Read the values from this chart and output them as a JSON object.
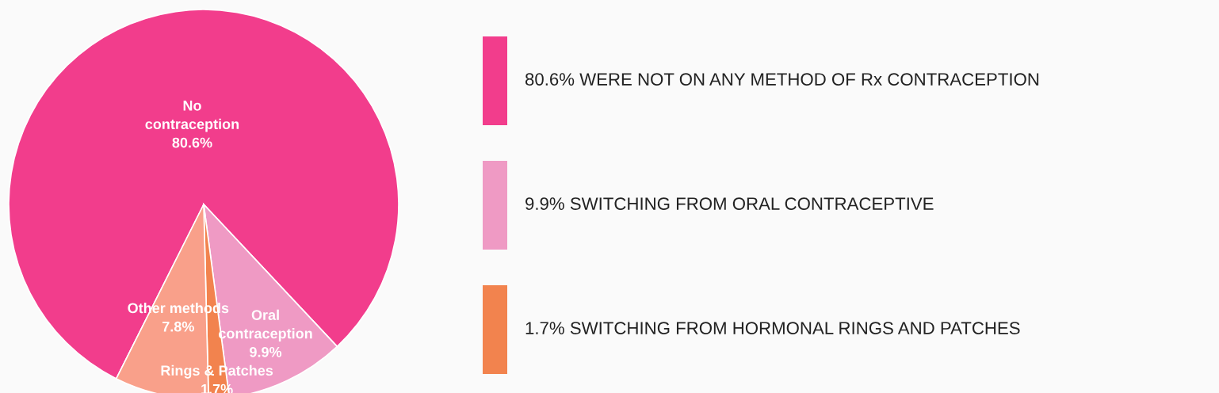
{
  "chart_data": {
    "type": "pie",
    "categories": [
      "No contraception",
      "Oral contraception",
      "Rings & Patches",
      "Other methods"
    ],
    "values": [
      80.6,
      9.9,
      1.7,
      7.8
    ],
    "value_labels": [
      "80.6%",
      "9.9%",
      "1.7%",
      "7.8%"
    ],
    "colors": [
      "#f23d8c",
      "#ef9ac4",
      "#f2834e",
      "#f9a08a"
    ],
    "annotations": [
      "80.6% WERE NOT ON ANY METHOD OF Rx CONTRACEPTION",
      "9.9% SWITCHING FROM ORAL CONTRACEPTIVE",
      "1.7% SWITCHING FROM HORMONAL RINGS AND PATCHES"
    ]
  }
}
